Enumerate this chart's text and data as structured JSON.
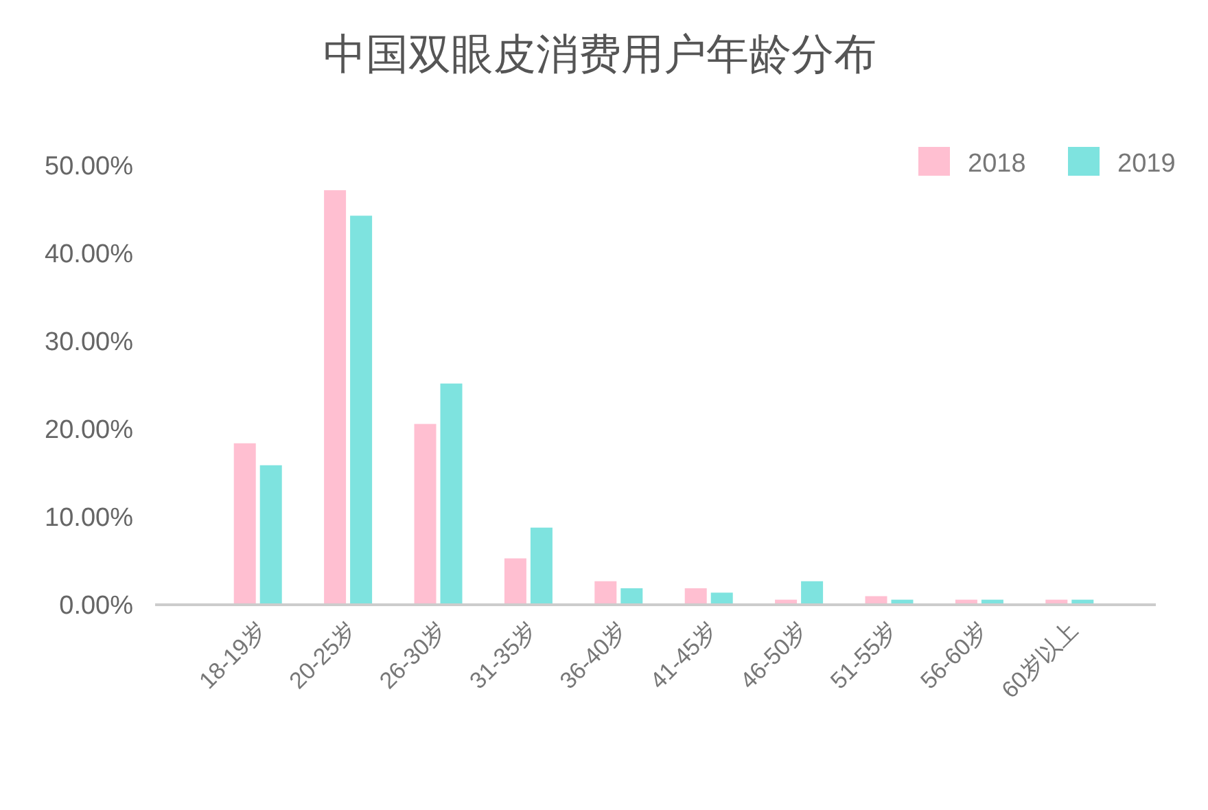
{
  "chart_data": {
    "type": "bar",
    "title": "中国双眼皮消费用户年龄分布",
    "categories": [
      "18-19岁",
      "20-25岁",
      "26-30岁",
      "31-35岁",
      "36-40岁",
      "41-45岁",
      "46-50岁",
      "51-55岁",
      "56-60岁",
      "60岁以上"
    ],
    "series": [
      {
        "name": "2018",
        "color": "#ffbfd1",
        "values": [
          18.3,
          47.1,
          20.5,
          5.2,
          2.6,
          1.8,
          0.5,
          0.9,
          0.5,
          0.5
        ]
      },
      {
        "name": "2019",
        "color": "#7ee3df",
        "values": [
          15.8,
          44.2,
          25.1,
          8.7,
          1.8,
          1.3,
          2.6,
          0.5,
          0.5,
          0.5
        ]
      }
    ],
    "ylim": [
      0,
      50
    ],
    "yticks": [
      {
        "value": 0,
        "label": "0.00%"
      },
      {
        "value": 10,
        "label": "10.00%"
      },
      {
        "value": 20,
        "label": "20.00%"
      },
      {
        "value": 30,
        "label": "30.00%"
      },
      {
        "value": 40,
        "label": "40.00%"
      },
      {
        "value": 50,
        "label": "50.00%"
      }
    ],
    "legend": "top right"
  }
}
